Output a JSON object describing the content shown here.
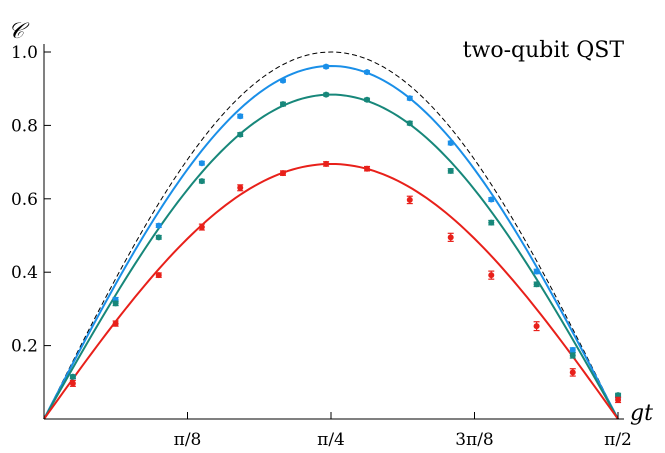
{
  "chart_data": {
    "type": "line",
    "title": "",
    "annotation": "two-qubit QST",
    "xlabel": "gt",
    "ylabel": "𝒞",
    "xlim": [
      0,
      1.5708
    ],
    "ylim": [
      0,
      1.0
    ],
    "x_ticks": [
      {
        "value": 0.3927,
        "label": "π/8"
      },
      {
        "value": 0.7854,
        "label": "π/4"
      },
      {
        "value": 1.1781,
        "label": "3π/8"
      },
      {
        "value": 1.5708,
        "label": "π/2"
      }
    ],
    "y_ticks": [
      {
        "value": 0.2,
        "label": "0.2"
      },
      {
        "value": 0.4,
        "label": "0.4"
      },
      {
        "value": 0.6,
        "label": "0.6"
      },
      {
        "value": 0.8,
        "label": "0.8"
      },
      {
        "value": 1.0,
        "label": "1.0"
      }
    ],
    "grid": false,
    "series": [
      {
        "style": "dashed",
        "color": "#000000",
        "amplitude": 1.0,
        "points": []
      },
      {
        "style": "solid",
        "color": "#1a8fe8",
        "amplitude": 0.962,
        "points": [
          {
            "x": 0.079,
            "y": 0.115,
            "err": 0.005
          },
          {
            "x": 0.196,
            "y": 0.325,
            "err": 0.006
          },
          {
            "x": 0.314,
            "y": 0.527,
            "err": 0.005
          },
          {
            "x": 0.432,
            "y": 0.697,
            "err": 0.005
          },
          {
            "x": 0.537,
            "y": 0.825,
            "err": 0.005
          },
          {
            "x": 0.654,
            "y": 0.922,
            "err": 0.004
          },
          {
            "x": 0.772,
            "y": 0.96,
            "err": 0.004
          },
          {
            "x": 0.884,
            "y": 0.945,
            "err": 0.004
          },
          {
            "x": 1.001,
            "y": 0.874,
            "err": 0.005
          },
          {
            "x": 1.113,
            "y": 0.752,
            "err": 0.005
          },
          {
            "x": 1.224,
            "y": 0.598,
            "err": 0.005
          },
          {
            "x": 1.348,
            "y": 0.402,
            "err": 0.006
          },
          {
            "x": 1.447,
            "y": 0.188,
            "err": 0.006
          },
          {
            "x": 1.571,
            "y": 0.062,
            "err": 0.005
          }
        ]
      },
      {
        "style": "solid",
        "color": "#17877a",
        "amplitude": 0.884,
        "points": [
          {
            "x": 0.079,
            "y": 0.115,
            "err": 0.005
          },
          {
            "x": 0.196,
            "y": 0.315,
            "err": 0.006
          },
          {
            "x": 0.314,
            "y": 0.495,
            "err": 0.005
          },
          {
            "x": 0.432,
            "y": 0.648,
            "err": 0.005
          },
          {
            "x": 0.537,
            "y": 0.775,
            "err": 0.005
          },
          {
            "x": 0.654,
            "y": 0.858,
            "err": 0.005
          },
          {
            "x": 0.772,
            "y": 0.884,
            "err": 0.004
          },
          {
            "x": 0.884,
            "y": 0.87,
            "err": 0.004
          },
          {
            "x": 1.001,
            "y": 0.806,
            "err": 0.005
          },
          {
            "x": 1.113,
            "y": 0.676,
            "err": 0.006
          },
          {
            "x": 1.224,
            "y": 0.535,
            "err": 0.006
          },
          {
            "x": 1.348,
            "y": 0.367,
            "err": 0.006
          },
          {
            "x": 1.447,
            "y": 0.173,
            "err": 0.007
          },
          {
            "x": 1.571,
            "y": 0.065,
            "err": 0.005
          }
        ]
      },
      {
        "style": "solid",
        "color": "#e8201a",
        "amplitude": 0.695,
        "points": [
          {
            "x": 0.079,
            "y": 0.097,
            "err": 0.008
          },
          {
            "x": 0.196,
            "y": 0.26,
            "err": 0.007
          },
          {
            "x": 0.314,
            "y": 0.392,
            "err": 0.006
          },
          {
            "x": 0.432,
            "y": 0.523,
            "err": 0.008
          },
          {
            "x": 0.537,
            "y": 0.63,
            "err": 0.008
          },
          {
            "x": 0.654,
            "y": 0.67,
            "err": 0.006
          },
          {
            "x": 0.772,
            "y": 0.695,
            "err": 0.006
          },
          {
            "x": 0.884,
            "y": 0.682,
            "err": 0.006
          },
          {
            "x": 1.001,
            "y": 0.597,
            "err": 0.01
          },
          {
            "x": 1.113,
            "y": 0.495,
            "err": 0.011
          },
          {
            "x": 1.224,
            "y": 0.392,
            "err": 0.011
          },
          {
            "x": 1.348,
            "y": 0.253,
            "err": 0.012
          },
          {
            "x": 1.447,
            "y": 0.127,
            "err": 0.01
          },
          {
            "x": 1.571,
            "y": 0.052,
            "err": 0.007
          }
        ]
      }
    ]
  }
}
